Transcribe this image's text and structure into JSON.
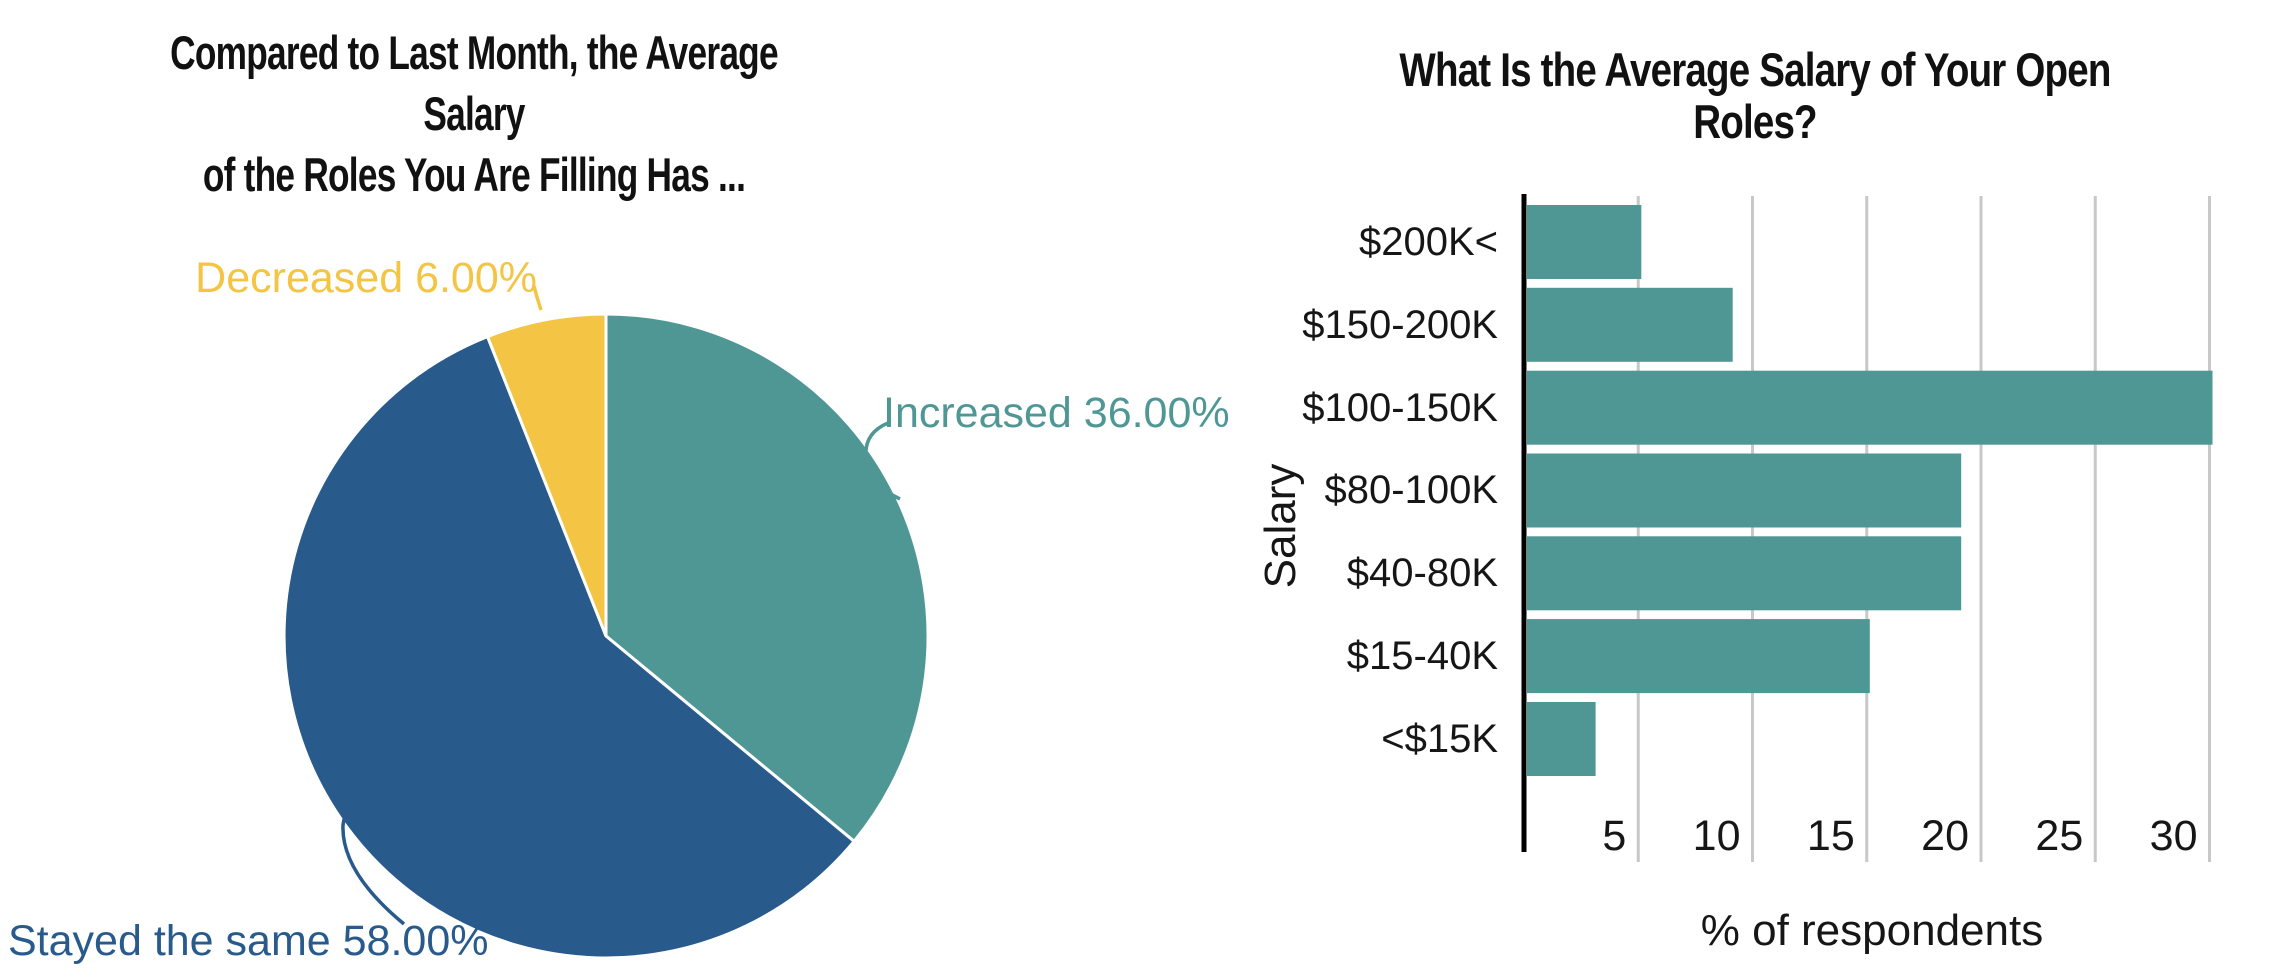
{
  "background_color": "#ffffff",
  "chart_data": [
    {
      "type": "pie",
      "title_lines": [
        "Compared to Last Month, the Average Salary",
        "of the Roles You Are Filling Has ..."
      ],
      "start_angle": "12 o'clock",
      "direction": "clockwise",
      "slice_border_color": "#ffffff",
      "slices": [
        {
          "label": "Increased",
          "value": 36.0,
          "display": "Increased 36.00%",
          "color": "#4F9795"
        },
        {
          "label": "Stayed the same",
          "value": 58.0,
          "display": "Stayed the same 58.00%",
          "color": "#285A8C"
        },
        {
          "label": "Decreased",
          "value": 6.0,
          "display": "Decreased 6.00%",
          "color": "#F4C544"
        }
      ]
    },
    {
      "type": "bar",
      "orientation": "horizontal",
      "title": "What Is the Average Salary of Your Open Roles?",
      "ylabel": "Salary",
      "xlabel": "% of respondents",
      "categories": [
        "$200K<",
        "$150-200K",
        "$100-150K",
        "$80-100K",
        "$40-80K",
        "$15-40K",
        "<$15K"
      ],
      "values": [
        5,
        9,
        30,
        19,
        19,
        15,
        3
      ],
      "xticks": [
        5,
        10,
        15,
        20,
        25,
        30
      ],
      "xlim": [
        0,
        33
      ],
      "grid": "vertical",
      "bar_color": "#4F9795",
      "axis_color": "#000000",
      "grid_color": "#C8C8C8",
      "text_color": "#161616"
    }
  ]
}
